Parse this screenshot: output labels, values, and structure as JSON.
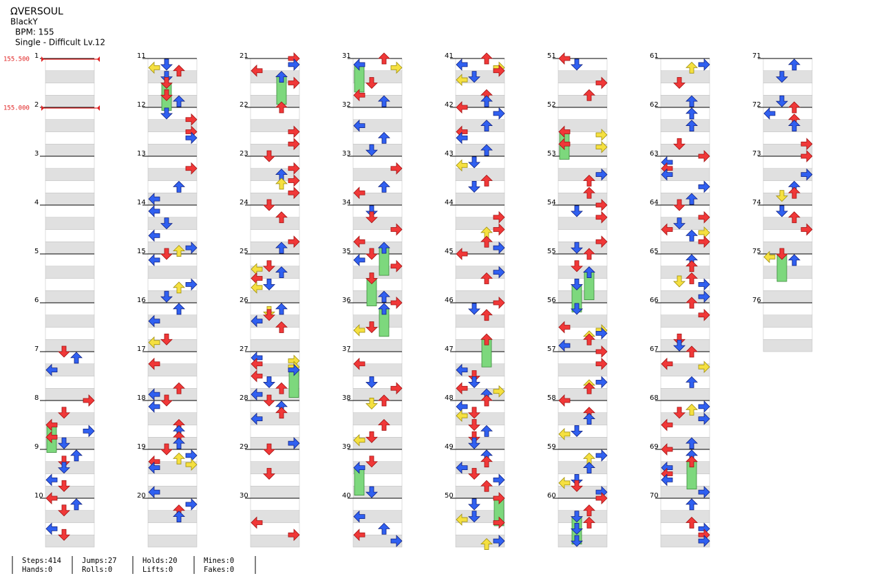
{
  "header": {
    "title": "ΩVERSOUL",
    "artist": "BlackY",
    "bpm": "BPM: 155",
    "chart": "Single - Difficult Lv.12"
  },
  "bpm_changes": [
    {
      "measure": 1,
      "label": "155.500"
    },
    {
      "measure": 2,
      "label": "155.000"
    }
  ],
  "measures": [
    1,
    2,
    3,
    4,
    5,
    6,
    7,
    8,
    9,
    10,
    11,
    12,
    13,
    14,
    15,
    16,
    17,
    18,
    19,
    20,
    21,
    22,
    23,
    24,
    25,
    26,
    27,
    28,
    29,
    30,
    31,
    32,
    33,
    34,
    35,
    36,
    37,
    38,
    39,
    40,
    41,
    42,
    43,
    44,
    45,
    46,
    47,
    48,
    49,
    50,
    51,
    52,
    53,
    54,
    55,
    56,
    57,
    58,
    59,
    60,
    61,
    62,
    63,
    64,
    65,
    66,
    67,
    68,
    69,
    70,
    71,
    72,
    73,
    74,
    75,
    76
  ],
  "stats": [
    [
      "Steps:414",
      "Hands:0"
    ],
    [
      "Jumps:27",
      "Rolls:0"
    ],
    [
      "Holds:20",
      "Lifts:0"
    ],
    [
      "Mines:0",
      "Fakes:0"
    ]
  ]
}
